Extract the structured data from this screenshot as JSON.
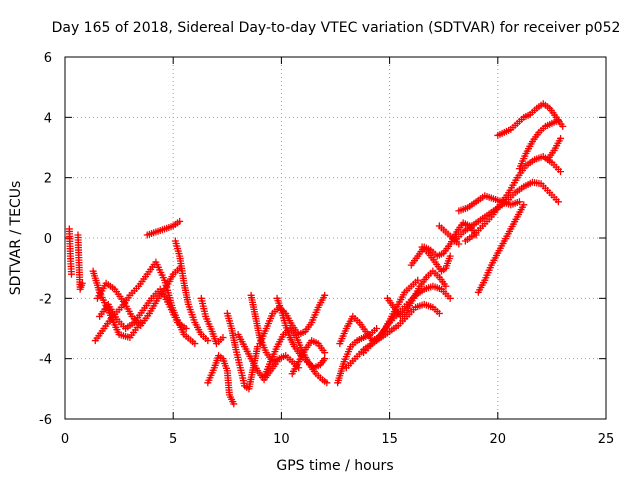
{
  "chart_data": {
    "type": "scatter",
    "title": "Day 165 of 2018, Sidereal Day-to-day VTEC variation (SDTVAR) for receiver p052",
    "xlabel": "GPS time / hours",
    "ylabel": "SDTVAR / TECUs",
    "xlim": [
      0,
      25
    ],
    "ylim": [
      -6,
      6
    ],
    "xticks": [
      0,
      5,
      10,
      15,
      20,
      25
    ],
    "yticks": [
      -6,
      -4,
      -2,
      0,
      2,
      4,
      6
    ],
    "xtick_labels": [
      "0",
      "5",
      "10",
      "15",
      "20",
      "25"
    ],
    "ytick_labels": [
      "-6",
      "-4",
      "-2",
      "0",
      "2",
      "4",
      "6"
    ],
    "grid": true,
    "marker": "+",
    "color": "#ff0000",
    "tracks": [
      [
        [
          0.2,
          0.3
        ],
        [
          0.25,
          -0.6
        ],
        [
          0.3,
          -1.2
        ]
      ],
      [
        [
          0.6,
          0.1
        ],
        [
          0.65,
          -0.9
        ],
        [
          0.7,
          -1.7
        ],
        [
          0.8,
          -1.5
        ]
      ],
      [
        [
          1.3,
          -1.1
        ],
        [
          1.6,
          -1.8
        ],
        [
          2.0,
          -2.4
        ],
        [
          2.5,
          -3.2
        ],
        [
          3.0,
          -3.3
        ],
        [
          3.5,
          -2.8
        ]
      ],
      [
        [
          1.4,
          -3.4
        ],
        [
          1.8,
          -3.0
        ],
        [
          2.2,
          -2.6
        ],
        [
          2.6,
          -2.3
        ],
        [
          3.0,
          -1.9
        ],
        [
          3.4,
          -1.6
        ],
        [
          3.8,
          -1.2
        ],
        [
          4.2,
          -0.8
        ],
        [
          4.6,
          -1.4
        ],
        [
          5.0,
          -2.4
        ],
        [
          5.5,
          -3.2
        ],
        [
          6.0,
          -3.5
        ]
      ],
      [
        [
          1.5,
          -2.0
        ],
        [
          1.9,
          -1.5
        ],
        [
          2.3,
          -1.7
        ],
        [
          2.7,
          -2.1
        ],
        [
          3.1,
          -2.6
        ],
        [
          3.5,
          -2.9
        ],
        [
          3.9,
          -2.5
        ],
        [
          4.3,
          -2.0
        ],
        [
          4.7,
          -1.6
        ],
        [
          5.0,
          -1.2
        ],
        [
          5.3,
          -1.0
        ]
      ],
      [
        [
          1.6,
          -2.6
        ],
        [
          2.0,
          -2.2
        ],
        [
          2.4,
          -2.7
        ],
        [
          2.8,
          -3.0
        ],
        [
          3.2,
          -2.8
        ],
        [
          3.6,
          -2.4
        ],
        [
          4.0,
          -2.0
        ],
        [
          4.4,
          -1.7
        ],
        [
          4.8,
          -2.2
        ],
        [
          5.2,
          -2.8
        ],
        [
          5.6,
          -3.0
        ]
      ],
      [
        [
          3.8,
          0.1
        ],
        [
          4.2,
          0.2
        ],
        [
          4.6,
          0.3
        ],
        [
          5.0,
          0.4
        ],
        [
          5.3,
          0.55
        ]
      ],
      [
        [
          5.1,
          -0.1
        ],
        [
          5.3,
          -0.6
        ],
        [
          5.5,
          -1.5
        ],
        [
          5.7,
          -2.2
        ],
        [
          6.0,
          -2.8
        ],
        [
          6.3,
          -3.2
        ],
        [
          6.6,
          -3.4
        ]
      ],
      [
        [
          6.3,
          -2.0
        ],
        [
          6.5,
          -2.6
        ],
        [
          6.8,
          -3.1
        ],
        [
          7.0,
          -3.5
        ],
        [
          7.3,
          -3.3
        ]
      ],
      [
        [
          6.6,
          -4.8
        ],
        [
          6.9,
          -4.3
        ],
        [
          7.1,
          -3.9
        ],
        [
          7.3,
          -4.0
        ],
        [
          7.5,
          -4.4
        ],
        [
          7.6,
          -5.2
        ],
        [
          7.8,
          -5.5
        ]
      ],
      [
        [
          7.5,
          -2.5
        ],
        [
          7.7,
          -3.0
        ],
        [
          7.9,
          -3.7
        ],
        [
          8.1,
          -4.3
        ],
        [
          8.3,
          -4.9
        ],
        [
          8.5,
          -5.0
        ],
        [
          8.7,
          -4.3
        ],
        [
          8.9,
          -3.6
        ]
      ],
      [
        [
          8.0,
          -3.2
        ],
        [
          8.3,
          -3.6
        ],
        [
          8.6,
          -4.0
        ],
        [
          8.9,
          -4.4
        ],
        [
          9.2,
          -4.7
        ],
        [
          9.5,
          -4.4
        ],
        [
          9.8,
          -4.1
        ]
      ],
      [
        [
          8.6,
          -1.9
        ],
        [
          8.8,
          -2.6
        ],
        [
          9.0,
          -3.3
        ],
        [
          9.3,
          -3.8
        ],
        [
          9.6,
          -4.1
        ],
        [
          9.9,
          -4.0
        ],
        [
          10.2,
          -3.9
        ],
        [
          10.5,
          -4.1
        ],
        [
          10.8,
          -4.3
        ]
      ],
      [
        [
          9.0,
          -3.5
        ],
        [
          9.3,
          -3.0
        ],
        [
          9.6,
          -2.5
        ],
        [
          9.9,
          -2.3
        ],
        [
          10.2,
          -2.5
        ],
        [
          10.5,
          -2.9
        ],
        [
          10.8,
          -3.2
        ],
        [
          11.1,
          -3.1
        ],
        [
          11.4,
          -2.8
        ],
        [
          11.7,
          -2.3
        ],
        [
          12.0,
          -1.9
        ]
      ],
      [
        [
          9.2,
          -4.6
        ],
        [
          9.5,
          -4.1
        ],
        [
          9.8,
          -3.6
        ],
        [
          10.1,
          -3.2
        ],
        [
          10.4,
          -3.0
        ],
        [
          10.7,
          -3.3
        ],
        [
          11.0,
          -3.8
        ],
        [
          11.3,
          -4.2
        ],
        [
          11.6,
          -4.5
        ],
        [
          11.9,
          -4.7
        ],
        [
          12.1,
          -4.8
        ]
      ],
      [
        [
          9.8,
          -2.0
        ],
        [
          10.0,
          -2.4
        ],
        [
          10.2,
          -2.9
        ],
        [
          10.4,
          -3.3
        ],
        [
          10.6,
          -3.6
        ],
        [
          10.9,
          -3.9
        ],
        [
          11.2,
          -4.1
        ],
        [
          11.5,
          -4.3
        ],
        [
          11.8,
          -4.2
        ],
        [
          12.0,
          -4.0
        ]
      ],
      [
        [
          10.5,
          -4.5
        ],
        [
          10.8,
          -4.1
        ],
        [
          11.1,
          -3.7
        ],
        [
          11.4,
          -3.4
        ],
        [
          11.7,
          -3.5
        ],
        [
          12.0,
          -3.8
        ]
      ],
      [
        [
          12.6,
          -4.8
        ],
        [
          12.9,
          -4.1
        ],
        [
          13.2,
          -3.6
        ],
        [
          13.5,
          -3.4
        ],
        [
          13.8,
          -3.3
        ],
        [
          14.1,
          -3.2
        ],
        [
          14.4,
          -3.0
        ]
      ],
      [
        [
          12.7,
          -3.5
        ],
        [
          13.0,
          -3.0
        ],
        [
          13.3,
          -2.6
        ],
        [
          13.6,
          -2.8
        ],
        [
          13.9,
          -3.1
        ],
        [
          14.2,
          -3.4
        ],
        [
          14.5,
          -3.3
        ],
        [
          14.8,
          -3.0
        ],
        [
          15.1,
          -2.6
        ],
        [
          15.4,
          -2.2
        ],
        [
          15.7,
          -1.8
        ],
        [
          16.0,
          -1.6
        ],
        [
          16.3,
          -1.4
        ]
      ],
      [
        [
          13.0,
          -4.3
        ],
        [
          13.4,
          -4.0
        ],
        [
          13.8,
          -3.7
        ],
        [
          14.2,
          -3.5
        ],
        [
          14.6,
          -3.3
        ],
        [
          15.0,
          -3.1
        ],
        [
          15.4,
          -2.9
        ],
        [
          15.8,
          -2.6
        ],
        [
          16.2,
          -2.3
        ],
        [
          16.6,
          -2.2
        ],
        [
          17.0,
          -2.3
        ],
        [
          17.3,
          -2.5
        ]
      ],
      [
        [
          13.8,
          -3.8
        ],
        [
          14.2,
          -3.5
        ],
        [
          14.6,
          -3.2
        ],
        [
          15.0,
          -2.8
        ],
        [
          15.4,
          -2.5
        ],
        [
          15.8,
          -2.2
        ],
        [
          16.2,
          -1.9
        ],
        [
          16.6,
          -1.7
        ],
        [
          17.0,
          -1.6
        ],
        [
          17.4,
          -1.7
        ],
        [
          17.8,
          -2.0
        ]
      ],
      [
        [
          14.9,
          -2.0
        ],
        [
          15.2,
          -2.3
        ],
        [
          15.5,
          -2.6
        ],
        [
          15.8,
          -2.4
        ],
        [
          16.1,
          -2.0
        ],
        [
          16.4,
          -1.6
        ],
        [
          16.7,
          -1.3
        ],
        [
          17.0,
          -1.1
        ],
        [
          17.3,
          -1.3
        ],
        [
          17.6,
          -1.6
        ]
      ],
      [
        [
          16.0,
          -0.9
        ],
        [
          16.3,
          -0.6
        ],
        [
          16.6,
          -0.3
        ],
        [
          16.9,
          -0.4
        ],
        [
          17.2,
          -0.6
        ],
        [
          17.5,
          -0.5
        ],
        [
          17.8,
          -0.2
        ],
        [
          18.1,
          0.2
        ],
        [
          18.4,
          0.5
        ],
        [
          18.7,
          0.4
        ],
        [
          19.0,
          0.1
        ]
      ],
      [
        [
          16.5,
          -0.3
        ],
        [
          16.8,
          -0.5
        ],
        [
          17.1,
          -0.8
        ],
        [
          17.4,
          -1.1
        ],
        [
          17.6,
          -1.0
        ],
        [
          17.8,
          -0.6
        ]
      ],
      [
        [
          17.3,
          0.4
        ],
        [
          17.6,
          0.2
        ],
        [
          17.9,
          0.0
        ],
        [
          18.2,
          -0.2
        ]
      ],
      [
        [
          18.2,
          0.9
        ],
        [
          18.6,
          1.0
        ],
        [
          19.0,
          1.2
        ],
        [
          19.4,
          1.4
        ],
        [
          19.8,
          1.3
        ],
        [
          20.2,
          1.2
        ],
        [
          20.6,
          1.1
        ],
        [
          21.0,
          1.2
        ]
      ],
      [
        [
          18.0,
          -0.1
        ],
        [
          18.4,
          0.2
        ],
        [
          18.8,
          0.4
        ],
        [
          19.2,
          0.6
        ],
        [
          19.6,
          0.8
        ],
        [
          20.0,
          1.0
        ],
        [
          20.4,
          1.2
        ],
        [
          20.8,
          1.5
        ],
        [
          21.2,
          1.7
        ],
        [
          21.6,
          1.85
        ],
        [
          22.0,
          1.8
        ],
        [
          22.4,
          1.5
        ],
        [
          22.8,
          1.2
        ]
      ],
      [
        [
          18.5,
          -0.1
        ],
        [
          18.9,
          0.1
        ],
        [
          19.3,
          0.4
        ],
        [
          19.7,
          0.7
        ],
        [
          20.1,
          1.1
        ],
        [
          20.5,
          1.5
        ],
        [
          20.9,
          2.0
        ],
        [
          21.3,
          2.4
        ],
        [
          21.7,
          2.6
        ],
        [
          22.1,
          2.7
        ],
        [
          22.5,
          2.5
        ],
        [
          22.9,
          2.2
        ]
      ],
      [
        [
          19.1,
          -1.8
        ],
        [
          19.4,
          -1.4
        ],
        [
          19.7,
          -0.9
        ],
        [
          20.0,
          -0.5
        ],
        [
          20.3,
          -0.1
        ],
        [
          20.6,
          0.3
        ],
        [
          20.9,
          0.7
        ],
        [
          21.2,
          1.1
        ]
      ],
      [
        [
          20.0,
          3.4
        ],
        [
          20.3,
          3.5
        ],
        [
          20.6,
          3.6
        ],
        [
          20.9,
          3.8
        ],
        [
          21.2,
          4.0
        ],
        [
          21.5,
          4.1
        ],
        [
          21.8,
          4.3
        ],
        [
          22.1,
          4.45
        ],
        [
          22.4,
          4.3
        ],
        [
          22.7,
          4.0
        ],
        [
          23.0,
          3.7
        ]
      ],
      [
        [
          21.0,
          2.3
        ],
        [
          21.3,
          2.8
        ],
        [
          21.6,
          3.2
        ],
        [
          21.9,
          3.5
        ],
        [
          22.2,
          3.7
        ],
        [
          22.5,
          3.8
        ],
        [
          22.8,
          3.9
        ]
      ],
      [
        [
          22.3,
          2.6
        ],
        [
          22.6,
          2.9
        ],
        [
          22.9,
          3.3
        ]
      ]
    ]
  }
}
